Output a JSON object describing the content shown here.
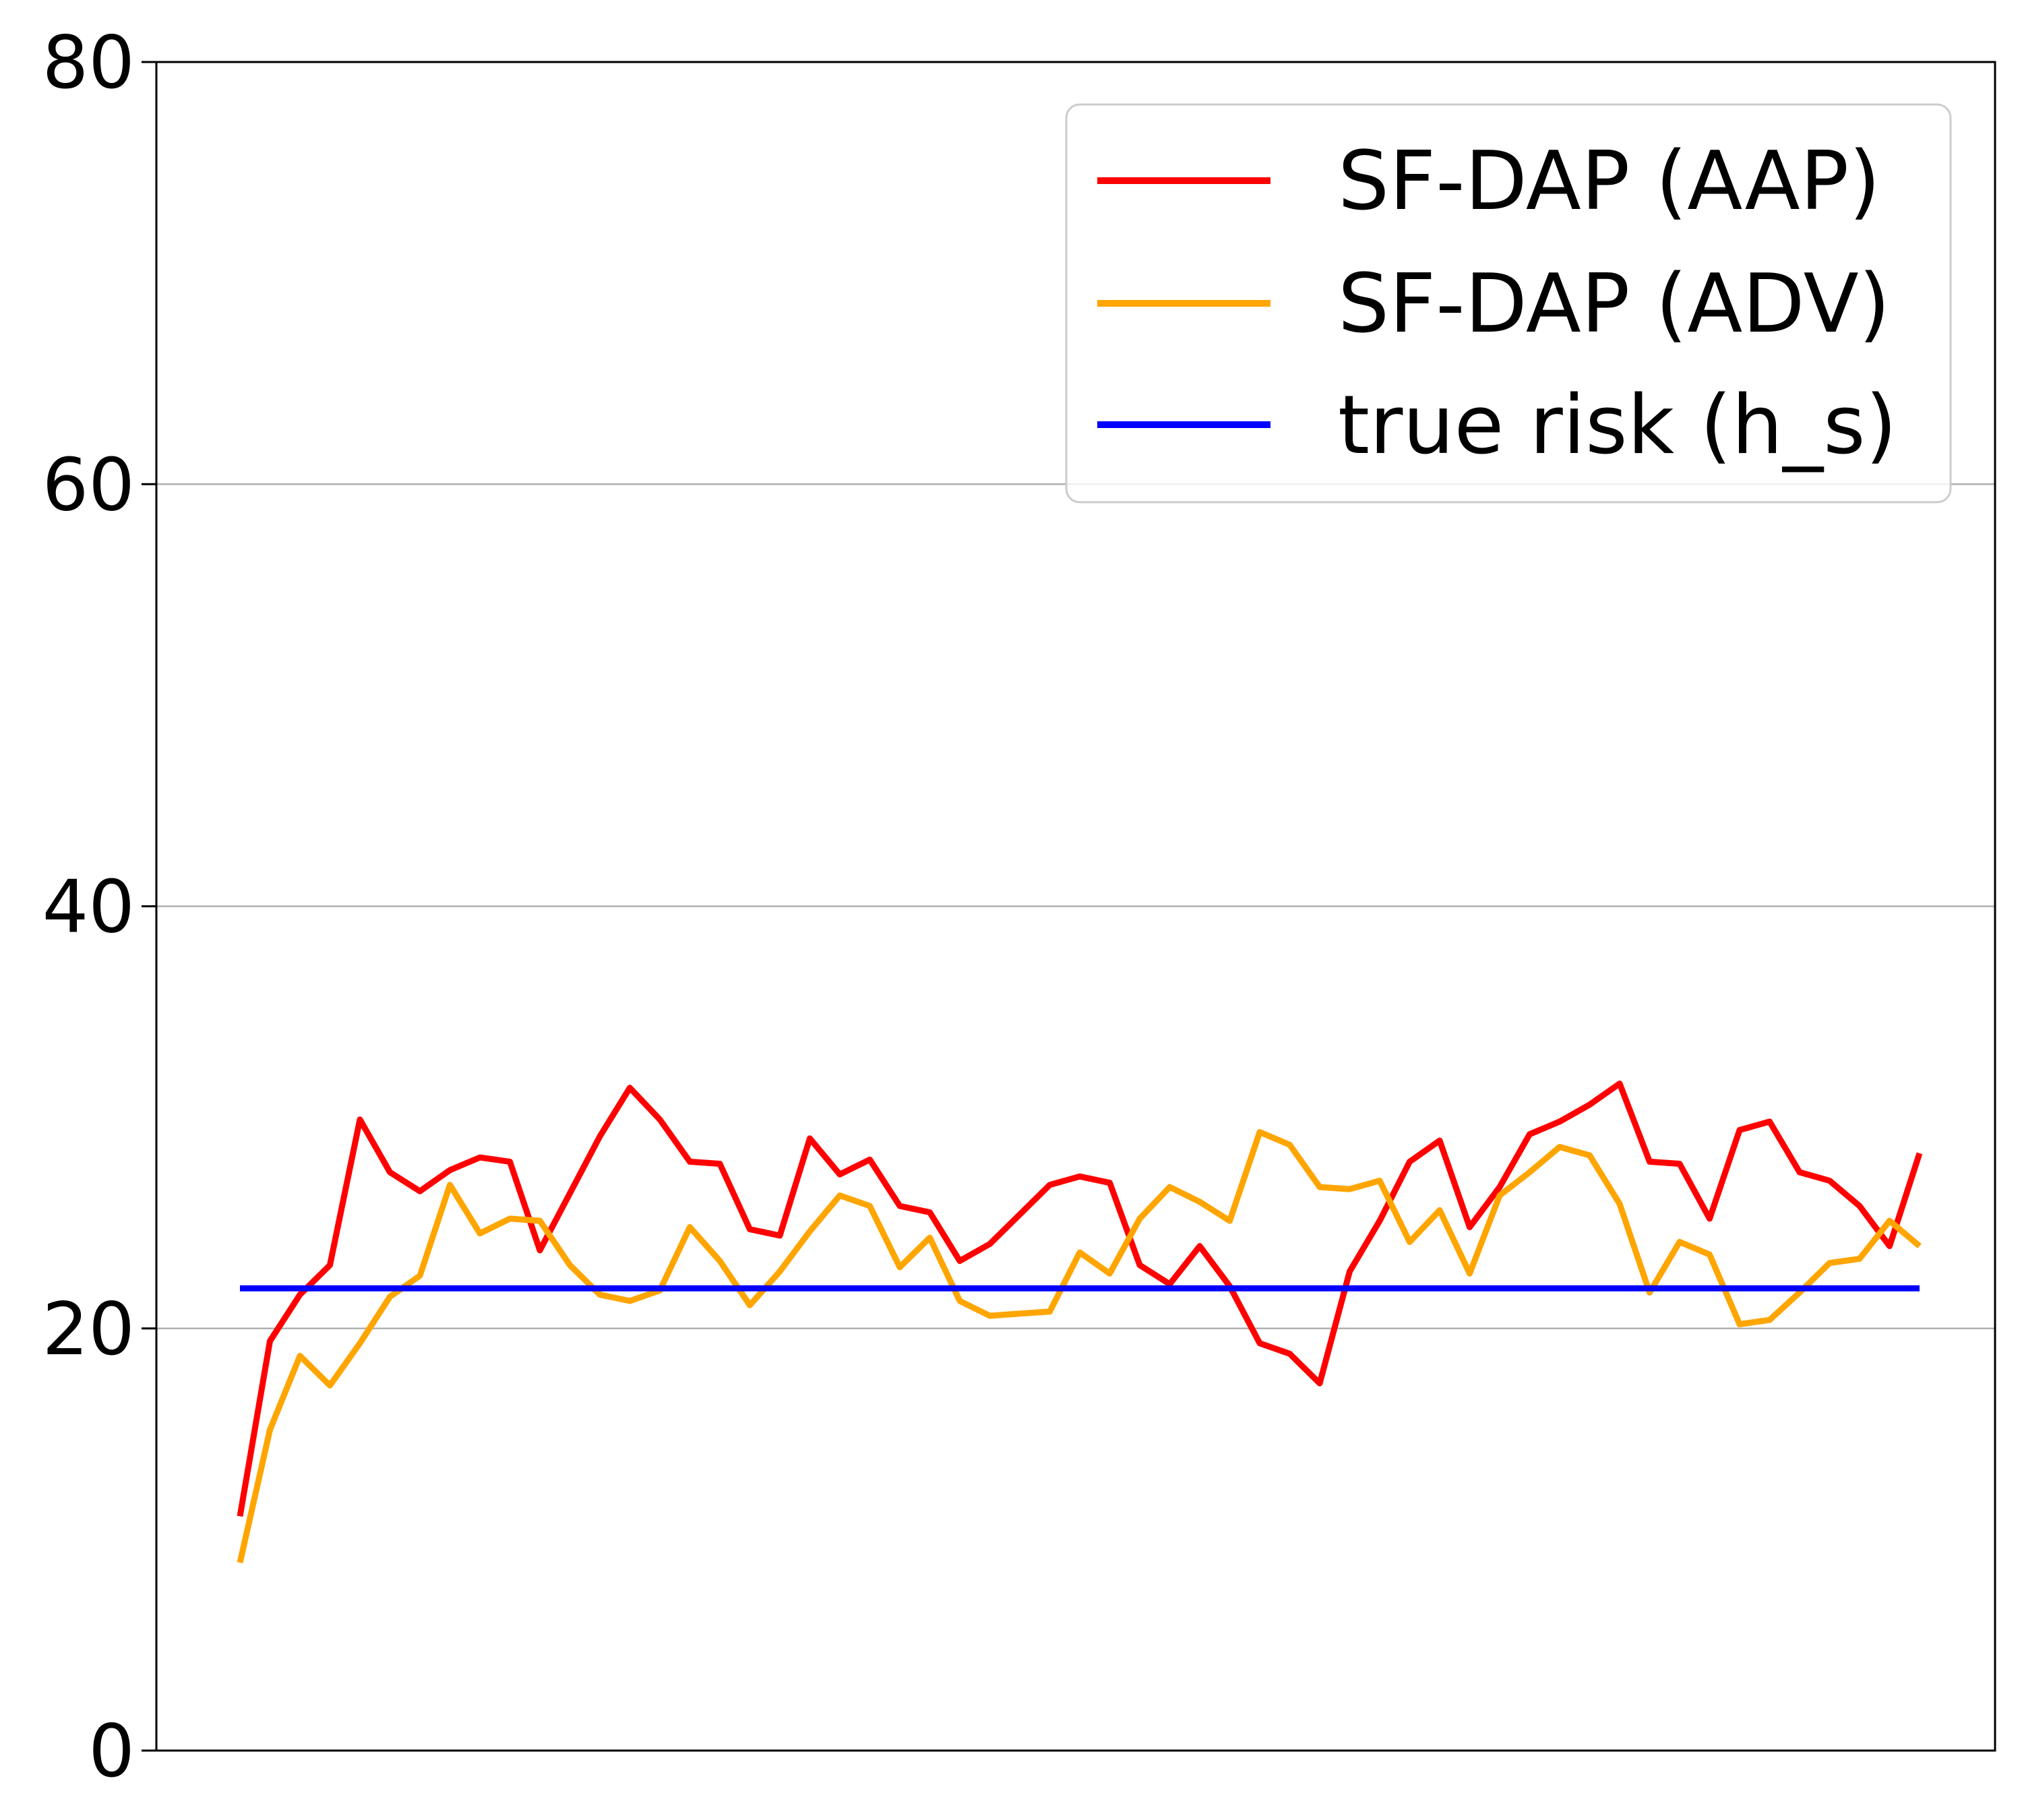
{
  "chart_data": {
    "type": "line",
    "title": "",
    "xlabel": "",
    "ylabel": "",
    "ylim": [
      0,
      80
    ],
    "yticks": [
      0,
      20,
      40,
      60,
      80
    ],
    "x": [
      1,
      2,
      3,
      4,
      5,
      6,
      7,
      8,
      9,
      10,
      11,
      12,
      13,
      14,
      15,
      16,
      17,
      18,
      19,
      20,
      21,
      22,
      23,
      24,
      25,
      26,
      27,
      28,
      29,
      30,
      31,
      32,
      33,
      34,
      35,
      36,
      37,
      38,
      39,
      40,
      41,
      42,
      43,
      44,
      45,
      46,
      47,
      48,
      49,
      50,
      51,
      52,
      53,
      54,
      55,
      56,
      57
    ],
    "grid": "horizontal",
    "legend_position": "top-right",
    "series": [
      {
        "name": "SF-DAP (AAP)",
        "color": "#ff0000",
        "values": [
          11.1,
          19.4,
          21.6,
          23.0,
          29.9,
          27.4,
          26.5,
          27.5,
          28.1,
          27.9,
          23.7,
          26.4,
          29.1,
          31.4,
          29.9,
          27.9,
          27.8,
          24.7,
          24.4,
          29.0,
          27.3,
          28.0,
          25.8,
          25.5,
          23.2,
          24.0,
          25.4,
          26.8,
          27.2,
          26.9,
          23.0,
          22.1,
          23.9,
          22.0,
          19.3,
          18.8,
          17.4,
          22.7,
          25.1,
          27.9,
          28.9,
          24.8,
          26.7,
          29.2,
          29.8,
          30.6,
          31.6,
          27.9,
          27.8,
          25.2,
          29.4,
          29.8,
          27.4,
          27.0,
          25.8,
          23.9,
          28.3
        ]
      },
      {
        "name": "SF-DAP (ADV)",
        "color": "#ffa500",
        "values": [
          8.9,
          15.2,
          18.7,
          17.3,
          19.3,
          21.5,
          22.5,
          26.8,
          24.5,
          25.2,
          25.1,
          23.0,
          21.6,
          21.3,
          21.8,
          24.8,
          23.2,
          21.1,
          22.7,
          24.6,
          26.3,
          25.8,
          22.9,
          24.3,
          21.3,
          20.6,
          20.7,
          20.8,
          23.6,
          22.6,
          25.2,
          26.7,
          26.0,
          25.1,
          29.3,
          28.7,
          26.7,
          26.6,
          27.0,
          24.1,
          25.6,
          22.6,
          26.3,
          27.4,
          28.6,
          28.2,
          25.9,
          21.7,
          24.1,
          23.5,
          20.2,
          20.4,
          21.7,
          23.1,
          23.3,
          25.1,
          23.9
        ]
      },
      {
        "name": "true risk (h_s)",
        "color": "#0000ff",
        "values": [
          21.9,
          21.9,
          21.9,
          21.9,
          21.9,
          21.9,
          21.9,
          21.9,
          21.9,
          21.9,
          21.9,
          21.9,
          21.9,
          21.9,
          21.9,
          21.9,
          21.9,
          21.9,
          21.9,
          21.9,
          21.9,
          21.9,
          21.9,
          21.9,
          21.9,
          21.9,
          21.9,
          21.9,
          21.9,
          21.9,
          21.9,
          21.9,
          21.9,
          21.9,
          21.9,
          21.9,
          21.9,
          21.9,
          21.9,
          21.9,
          21.9,
          21.9,
          21.9,
          21.9,
          21.9,
          21.9,
          21.9,
          21.9,
          21.9,
          21.9,
          21.9,
          21.9,
          21.9,
          21.9,
          21.9,
          21.9,
          21.9
        ]
      }
    ]
  }
}
